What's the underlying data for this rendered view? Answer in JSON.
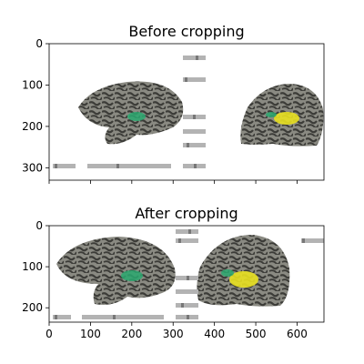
{
  "chart_data": [
    {
      "type": "image",
      "title": "Before cropping",
      "xlim": [
        0,
        665
      ],
      "ylim": [
        330,
        0
      ],
      "yticks": [
        0,
        100,
        200,
        300
      ],
      "xtick_labels_shown": false,
      "content": "inflated brain surfaces (left and right hemispheres) with activation overlay and colorbar widgets"
    },
    {
      "type": "image",
      "title": "After cropping",
      "xlim": [
        0,
        665
      ],
      "ylim": [
        235,
        0
      ],
      "xticks": [
        0,
        100,
        200,
        300,
        400,
        500,
        600
      ],
      "yticks": [
        0,
        100,
        200
      ],
      "xtick_labels_shown": true,
      "content": "cropped inflated brain surfaces with activation overlay and colorbar widgets"
    }
  ],
  "colors": {
    "brain_gyri": "#8a8a82",
    "brain_sulci": "#3c3c38",
    "activation_yellow": "#e8e020",
    "activation_green": "#2aa870",
    "activation_teal": "#2a7a8a",
    "widget_bar": "#b3b3b3"
  }
}
